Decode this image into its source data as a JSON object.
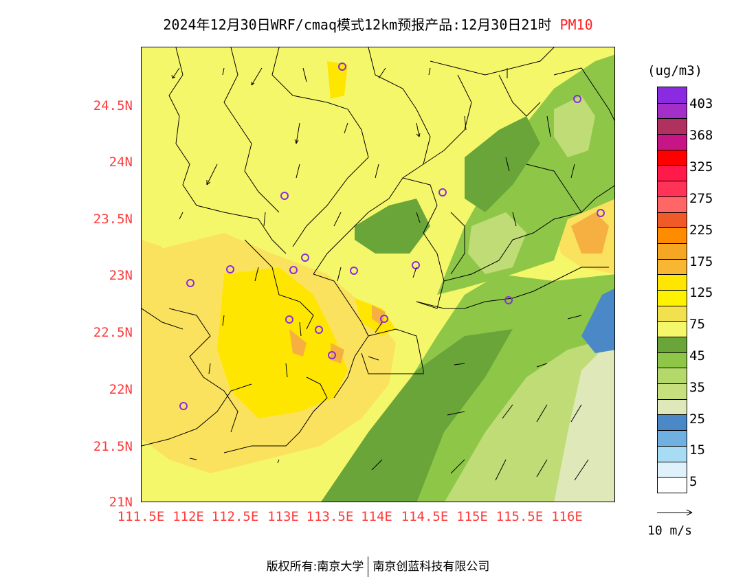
{
  "title": {
    "main": "2024年12月30日WRF/cmaq模式12km预报产品:12月30日21时",
    "pollutant": "PM10"
  },
  "map": {
    "lat_ticks": [
      "24.5N",
      "24N",
      "23.5N",
      "23N",
      "22.5N",
      "22N",
      "21.5N",
      "21N"
    ],
    "lon_ticks": [
      "111.5E",
      "112E",
      "112.5E",
      "113E",
      "113.5E",
      "114E",
      "114.5E",
      "115E",
      "115.5E",
      "116E"
    ],
    "colors": {
      "yellow_light": "#f5f76b",
      "yellow": "#fbe25e",
      "yellow_bright": "#ffe600",
      "orange_light": "#f5b041",
      "green_dark": "#6aa53a",
      "green": "#8ec748",
      "green_light": "#bfdc76",
      "green_pale": "#dfe8b8",
      "blue": "#4a88c8",
      "station_marker": "#8a2be2"
    }
  },
  "colorbar": {
    "unit": "(ug/m3)",
    "labels": [
      "403",
      "368",
      "325",
      "275",
      "225",
      "175",
      "125",
      "75",
      "45",
      "35",
      "25",
      "15",
      "5"
    ],
    "colors": [
      "#8a2be2",
      "#a32ec8",
      "#b03060",
      "#c71585",
      "#ff0000",
      "#ff1a4a",
      "#ff3355",
      "#ff6666",
      "#f05a28",
      "#ff8c00",
      "#f5a623",
      "#f7b733",
      "#ffe600",
      "#fff200",
      "#f2e14c",
      "#f5f76b",
      "#6aa53a",
      "#8ec748",
      "#b3d96a",
      "#c7e07e",
      "#dfe8b8",
      "#4a88c8",
      "#6fb0e0",
      "#a8dcf5",
      "#dff2fb",
      "#ffffff"
    ]
  },
  "wind_reference": {
    "label": "10 m/s"
  },
  "footer": {
    "left": "版权所有:南京大学",
    "right": "南京创蓝科技有限公司"
  }
}
